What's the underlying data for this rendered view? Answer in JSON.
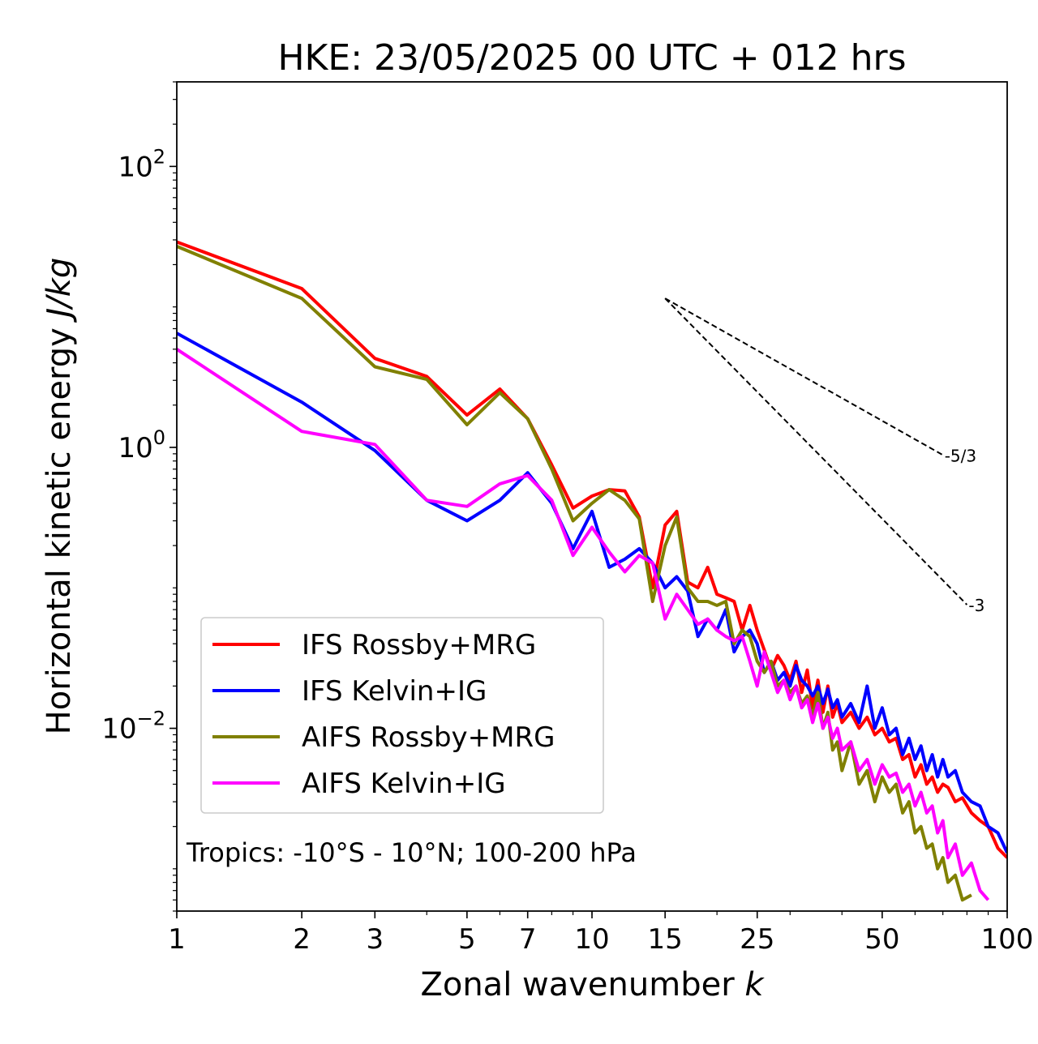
{
  "chart_data": {
    "type": "line",
    "title": "HKE: 23/05/2025 00 UTC + 012 hrs",
    "xlabel": "Zonal wavenumber",
    "xlabel_symbol": "k",
    "ylabel": "Horizontal kinetic energy",
    "ylabel_units": "J/kg",
    "xscale": "log",
    "yscale": "log",
    "xlim": [
      1,
      100
    ],
    "ylim": [
      0.0005,
      400
    ],
    "x_ticks": [
      1,
      2,
      3,
      5,
      7,
      10,
      15,
      25,
      50,
      100
    ],
    "x_tick_labels": [
      "1",
      "2",
      "3",
      "5",
      "7",
      "10",
      "15",
      "25",
      "50",
      "100"
    ],
    "y_ticks": [
      0.01,
      1,
      100
    ],
    "y_tick_labels": [
      {
        "base": "10",
        "exp": "−2"
      },
      {
        "base": "10",
        "exp": "0"
      },
      {
        "base": "10",
        "exp": "2"
      }
    ],
    "annotation": "Tropics: -10°S - 10°N; 100-200 hPa",
    "legend_position": "lower-left",
    "reference_lines": [
      {
        "label": "-5/3",
        "k_start": 15,
        "k_end": 70,
        "e_start": 11.5
      },
      {
        "label": "-3",
        "k_start": 15,
        "k_end": 80,
        "e_start": 11.5
      }
    ],
    "series": [
      {
        "name": "IFS Rossby+MRG",
        "color": "#ff0000",
        "points": [
          [
            1,
            29
          ],
          [
            2,
            13.5
          ],
          [
            3,
            4.3
          ],
          [
            4,
            3.2
          ],
          [
            5,
            1.7
          ],
          [
            6,
            2.6
          ],
          [
            7,
            1.6
          ],
          [
            8,
            0.75
          ],
          [
            9,
            0.37
          ],
          [
            10,
            0.45
          ],
          [
            11,
            0.5
          ],
          [
            12,
            0.49
          ],
          [
            13,
            0.32
          ],
          [
            14,
            0.1
          ],
          [
            15,
            0.28
          ],
          [
            16,
            0.35
          ],
          [
            17,
            0.11
          ],
          [
            18,
            0.1
          ],
          [
            19,
            0.14
          ],
          [
            20,
            0.09
          ],
          [
            21,
            0.085
          ],
          [
            22,
            0.08
          ],
          [
            23,
            0.05
          ],
          [
            24,
            0.075
          ],
          [
            25,
            0.05
          ],
          [
            26,
            0.036
          ],
          [
            27,
            0.026
          ],
          [
            28,
            0.033
          ],
          [
            29,
            0.028
          ],
          [
            30,
            0.022
          ],
          [
            31,
            0.03
          ],
          [
            32,
            0.018
          ],
          [
            33,
            0.026
          ],
          [
            34,
            0.014
          ],
          [
            35,
            0.022
          ],
          [
            36,
            0.013
          ],
          [
            37,
            0.02
          ],
          [
            38,
            0.012
          ],
          [
            39,
            0.015
          ],
          [
            40,
            0.011
          ],
          [
            42,
            0.013
          ],
          [
            44,
            0.01
          ],
          [
            46,
            0.012
          ],
          [
            48,
            0.009
          ],
          [
            50,
            0.01
          ],
          [
            52,
            0.008
          ],
          [
            54,
            0.0085
          ],
          [
            56,
            0.006
          ],
          [
            58,
            0.0065
          ],
          [
            60,
            0.0045
          ],
          [
            62,
            0.0055
          ],
          [
            64,
            0.004
          ],
          [
            66,
            0.0045
          ],
          [
            68,
            0.0035
          ],
          [
            70,
            0.004
          ],
          [
            72,
            0.0038
          ],
          [
            75,
            0.003
          ],
          [
            78,
            0.0032
          ],
          [
            82,
            0.0025
          ],
          [
            86,
            0.0022
          ],
          [
            90,
            0.002
          ],
          [
            95,
            0.0014
          ],
          [
            100,
            0.0012
          ]
        ]
      },
      {
        "name": "IFS Kelvin+IG",
        "color": "#0000ff",
        "points": [
          [
            1,
            6.5
          ],
          [
            2,
            2.1
          ],
          [
            3,
            0.95
          ],
          [
            4,
            0.42
          ],
          [
            5,
            0.3
          ],
          [
            6,
            0.42
          ],
          [
            7,
            0.66
          ],
          [
            8,
            0.4
          ],
          [
            9,
            0.19
          ],
          [
            10,
            0.35
          ],
          [
            11,
            0.14
          ],
          [
            12,
            0.16
          ],
          [
            13,
            0.19
          ],
          [
            14,
            0.15
          ],
          [
            15,
            0.1
          ],
          [
            16,
            0.12
          ],
          [
            17,
            0.095
          ],
          [
            18,
            0.045
          ],
          [
            19,
            0.06
          ],
          [
            20,
            0.05
          ],
          [
            21,
            0.07
          ],
          [
            22,
            0.035
          ],
          [
            23,
            0.045
          ],
          [
            24,
            0.05
          ],
          [
            25,
            0.04
          ],
          [
            26,
            0.025
          ],
          [
            27,
            0.03
          ],
          [
            28,
            0.022
          ],
          [
            29,
            0.025
          ],
          [
            30,
            0.02
          ],
          [
            31,
            0.028
          ],
          [
            32,
            0.022
          ],
          [
            33,
            0.02
          ],
          [
            34,
            0.017
          ],
          [
            35,
            0.02
          ],
          [
            36,
            0.015
          ],
          [
            37,
            0.019
          ],
          [
            38,
            0.014
          ],
          [
            39,
            0.016
          ],
          [
            40,
            0.012
          ],
          [
            42,
            0.015
          ],
          [
            44,
            0.011
          ],
          [
            46,
            0.02
          ],
          [
            48,
            0.01
          ],
          [
            50,
            0.014
          ],
          [
            52,
            0.009
          ],
          [
            54,
            0.01
          ],
          [
            56,
            0.0065
          ],
          [
            58,
            0.0085
          ],
          [
            60,
            0.006
          ],
          [
            62,
            0.0075
          ],
          [
            64,
            0.005
          ],
          [
            66,
            0.0065
          ],
          [
            68,
            0.0045
          ],
          [
            70,
            0.006
          ],
          [
            72,
            0.0045
          ],
          [
            75,
            0.005
          ],
          [
            78,
            0.0035
          ],
          [
            82,
            0.003
          ],
          [
            86,
            0.0028
          ],
          [
            90,
            0.002
          ],
          [
            95,
            0.0018
          ],
          [
            100,
            0.0013
          ]
        ]
      },
      {
        "name": "AIFS Rossby+MRG",
        "color": "#808000",
        "points": [
          [
            1,
            27
          ],
          [
            2,
            11.5
          ],
          [
            3,
            3.75
          ],
          [
            4,
            3.05
          ],
          [
            5,
            1.45
          ],
          [
            6,
            2.45
          ],
          [
            7,
            1.6
          ],
          [
            8,
            0.7
          ],
          [
            9,
            0.3
          ],
          [
            10,
            0.4
          ],
          [
            11,
            0.5
          ],
          [
            12,
            0.42
          ],
          [
            13,
            0.31
          ],
          [
            14,
            0.08
          ],
          [
            15,
            0.2
          ],
          [
            16,
            0.32
          ],
          [
            17,
            0.1
          ],
          [
            18,
            0.08
          ],
          [
            19,
            0.08
          ],
          [
            20,
            0.075
          ],
          [
            21,
            0.08
          ],
          [
            22,
            0.04
          ],
          [
            23,
            0.05
          ],
          [
            24,
            0.045
          ],
          [
            25,
            0.03
          ],
          [
            26,
            0.025
          ],
          [
            27,
            0.03
          ],
          [
            28,
            0.02
          ],
          [
            29,
            0.022
          ],
          [
            30,
            0.018
          ],
          [
            31,
            0.02
          ],
          [
            32,
            0.015
          ],
          [
            33,
            0.017
          ],
          [
            34,
            0.012
          ],
          [
            35,
            0.018
          ],
          [
            36,
            0.01
          ],
          [
            37,
            0.013
          ],
          [
            38,
            0.007
          ],
          [
            39,
            0.008
          ],
          [
            40,
            0.005
          ],
          [
            42,
            0.008
          ],
          [
            44,
            0.004
          ],
          [
            46,
            0.005
          ],
          [
            48,
            0.003
          ],
          [
            50,
            0.0045
          ],
          [
            52,
            0.0035
          ],
          [
            54,
            0.004
          ],
          [
            56,
            0.0025
          ],
          [
            58,
            0.003
          ],
          [
            60,
            0.0018
          ],
          [
            62,
            0.002
          ],
          [
            64,
            0.0014
          ],
          [
            66,
            0.0015
          ],
          [
            68,
            0.001
          ],
          [
            70,
            0.0012
          ],
          [
            72,
            0.0008
          ],
          [
            75,
            0.0009
          ],
          [
            78,
            0.0006
          ],
          [
            82,
            0.00065
          ]
        ]
      },
      {
        "name": "AIFS Kelvin+IG",
        "color": "#ff00ff",
        "points": [
          [
            1,
            5.0
          ],
          [
            2,
            1.3
          ],
          [
            3,
            1.05
          ],
          [
            4,
            0.42
          ],
          [
            5,
            0.38
          ],
          [
            6,
            0.55
          ],
          [
            7,
            0.63
          ],
          [
            8,
            0.42
          ],
          [
            9,
            0.17
          ],
          [
            10,
            0.27
          ],
          [
            11,
            0.18
          ],
          [
            12,
            0.13
          ],
          [
            13,
            0.17
          ],
          [
            14,
            0.15
          ],
          [
            15,
            0.06
          ],
          [
            16,
            0.09
          ],
          [
            17,
            0.07
          ],
          [
            18,
            0.055
          ],
          [
            19,
            0.06
          ],
          [
            20,
            0.05
          ],
          [
            21,
            0.045
          ],
          [
            22,
            0.042
          ],
          [
            23,
            0.045
          ],
          [
            24,
            0.03
          ],
          [
            25,
            0.02
          ],
          [
            26,
            0.035
          ],
          [
            27,
            0.025
          ],
          [
            28,
            0.018
          ],
          [
            29,
            0.022
          ],
          [
            30,
            0.016
          ],
          [
            31,
            0.02
          ],
          [
            32,
            0.014
          ],
          [
            33,
            0.016
          ],
          [
            34,
            0.011
          ],
          [
            35,
            0.015
          ],
          [
            36,
            0.01
          ],
          [
            37,
            0.012
          ],
          [
            38,
            0.0085
          ],
          [
            39,
            0.01
          ],
          [
            40,
            0.007
          ],
          [
            42,
            0.008
          ],
          [
            44,
            0.005
          ],
          [
            46,
            0.006
          ],
          [
            48,
            0.004
          ],
          [
            50,
            0.0055
          ],
          [
            52,
            0.0045
          ],
          [
            54,
            0.0048
          ],
          [
            56,
            0.0035
          ],
          [
            58,
            0.004
          ],
          [
            60,
            0.0028
          ],
          [
            62,
            0.0035
          ],
          [
            64,
            0.0025
          ],
          [
            66,
            0.0028
          ],
          [
            68,
            0.0018
          ],
          [
            70,
            0.0022
          ],
          [
            72,
            0.0012
          ],
          [
            75,
            0.0015
          ],
          [
            78,
            0.0009
          ],
          [
            82,
            0.0011
          ],
          [
            86,
            0.0007
          ],
          [
            90,
            0.0006
          ]
        ]
      }
    ]
  }
}
